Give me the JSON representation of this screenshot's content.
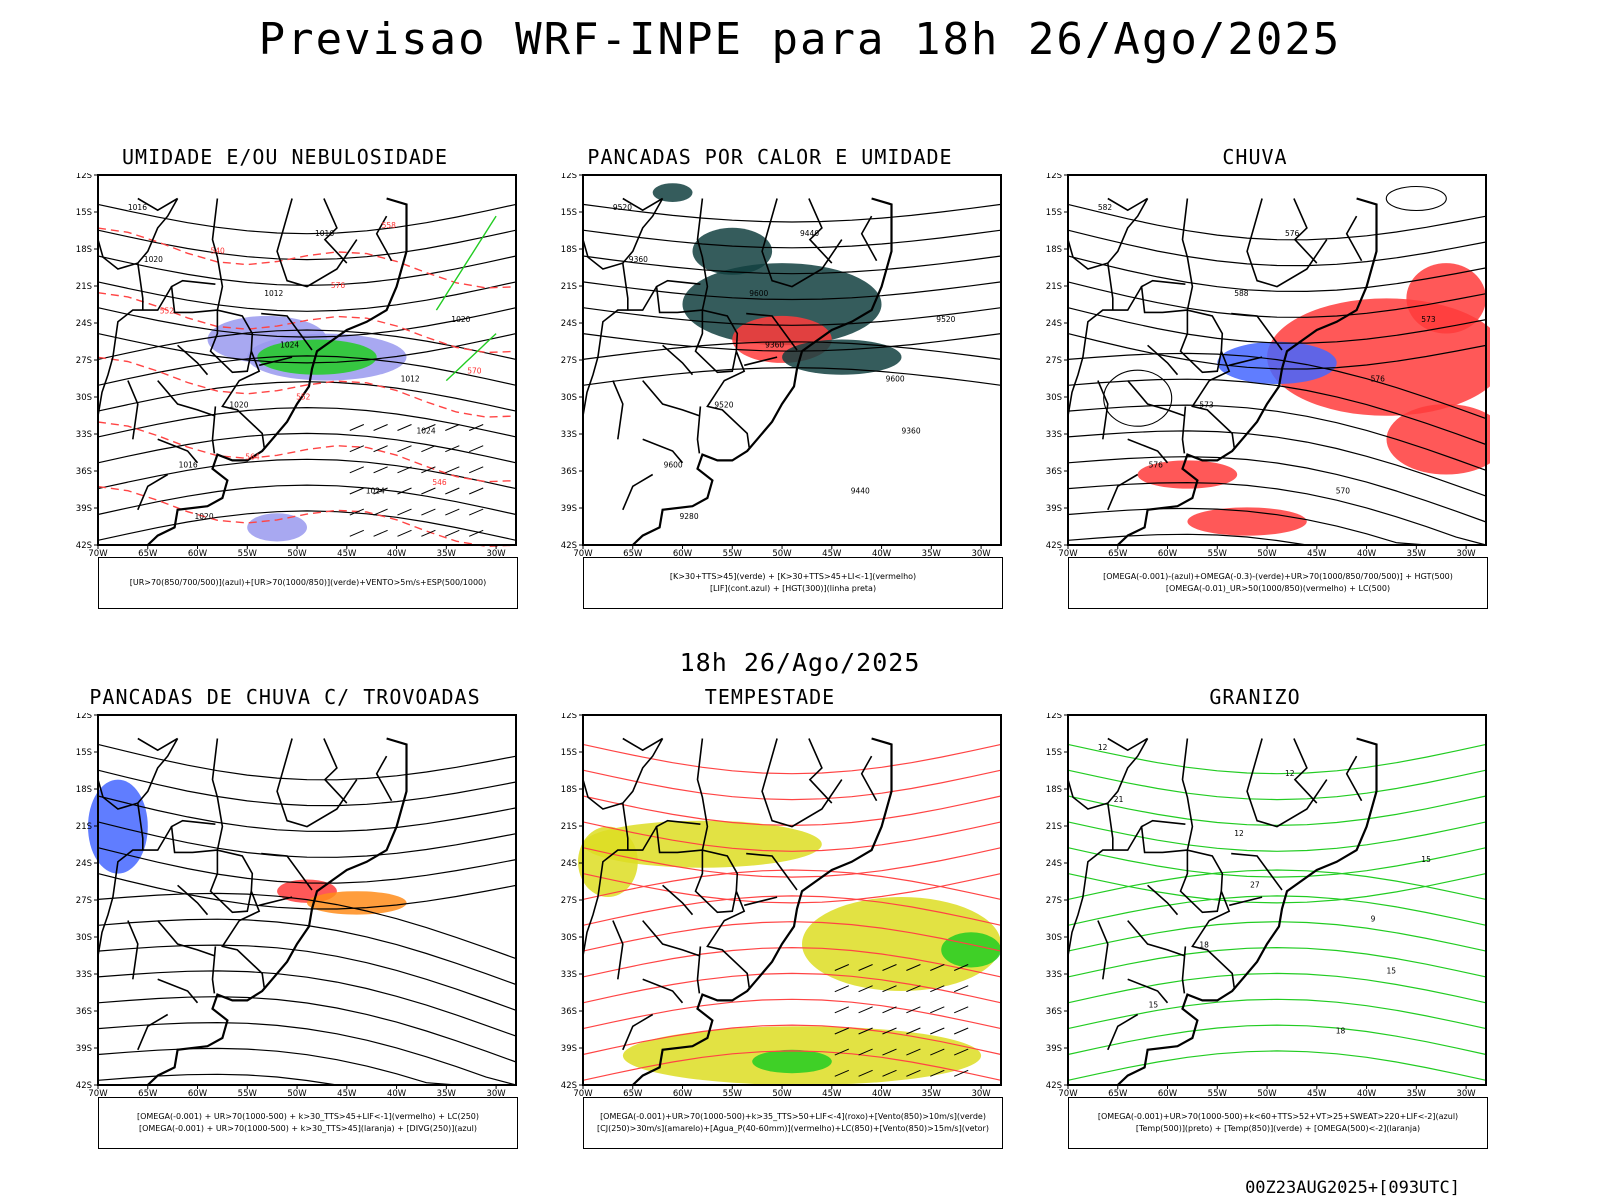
{
  "title": "Previsao WRF-INPE  para 18h 26/Ago/2025",
  "mid_label": "18h 26/Ago/2025",
  "footer": "00Z23AUG2025+[093UTC]",
  "axes": {
    "lat_ticks": [
      "12S",
      "15S",
      "18S",
      "21S",
      "24S",
      "27S",
      "30S",
      "33S",
      "36S",
      "39S",
      "42S"
    ],
    "lon_ticks": [
      "70W",
      "65W",
      "60W",
      "55W",
      "50W",
      "45W",
      "40W",
      "35W",
      "30W"
    ]
  },
  "panels": [
    {
      "id": "umidade",
      "title": "UMIDADE E/OU NEBULOSIDADE",
      "legend": [
        "[UR>70(850/700/500)](azul)+[UR>70(1000/850)](verde)+VENTO>5m/s+ESP(500/1000)"
      ],
      "labels": [
        "1016",
        "1012",
        "1012",
        "1016",
        "1016",
        "1020",
        "1020",
        "1024",
        "1020",
        "1024",
        "1024",
        "1020",
        "576",
        "570",
        "564",
        "558",
        "552",
        "552",
        "546",
        "540"
      ]
    },
    {
      "id": "pancadas-calor",
      "title": "PANCADAS POR CALOR E UMIDADE",
      "legend": [
        "[K>30+TTS>45](verde) + [K>30+TTS>45+LI<-1](vermelho)",
        "[LIF](cont.azul) + [HGT(300)](linha preta)"
      ],
      "labels": [
        "9520",
        "9600",
        "9600",
        "9600",
        "9440",
        "9520",
        "9520",
        "9440",
        "9360",
        "9360",
        "9360",
        "9280"
      ]
    },
    {
      "id": "chuva",
      "title": "CHUVA",
      "legend": [
        "[OMEGA(-0.001)-(azul)+OMEGA(-0.3)-(verde)+UR>70(1000/850/700/500)] + HGT(500)",
        "[OMEGA(-0.01)_UR>50(1000/850)(vermelho) + LC(500)"
      ],
      "labels": [
        "582",
        "588",
        "576",
        "576",
        "576",
        "573",
        "573",
        "570"
      ]
    },
    {
      "id": "trovoadas",
      "title": "PANCADAS DE CHUVA C/ TROVOADAS",
      "legend": [
        "[OMEGA(-0.001) + UR>70(1000-500) + k>30_TTS>45+LIF<-1](vermelho) + LC(250)",
        "[OMEGA(-0.001) + UR>70(1000-500) + k>30_TTS>45](laranja) + [DIVG(250)](azul)"
      ],
      "labels": []
    },
    {
      "id": "tempestade",
      "title": "TEMPESTADE",
      "legend": [
        "[OMEGA(-0.001)+UR>70(1000-500)+k>35_TTS>50+LIF<-4](roxo)+[Vento(850)>10m/s](verde)",
        "[CJ(250)>30m/s](amarelo)+[Agua_P(40-60mm)](vermelho)+LC(850)+[Vento(850)>15m/s](vetor)"
      ],
      "labels": []
    },
    {
      "id": "granizo",
      "title": "GRANIZO",
      "legend": [
        "[OMEGA(-0.001)+UR>70(1000-500)+k<60+TTS>52+VT>25+SWEAT>220+LIF<-2](azul)",
        "[Temp(500)](preto) + [Temp(850)](verde) + [OMEGA(500)<-2](laranja)"
      ],
      "labels": [
        "12",
        "12",
        "9",
        "15",
        "12",
        "15",
        "18",
        "18",
        "21",
        "27",
        "15"
      ]
    }
  ]
}
